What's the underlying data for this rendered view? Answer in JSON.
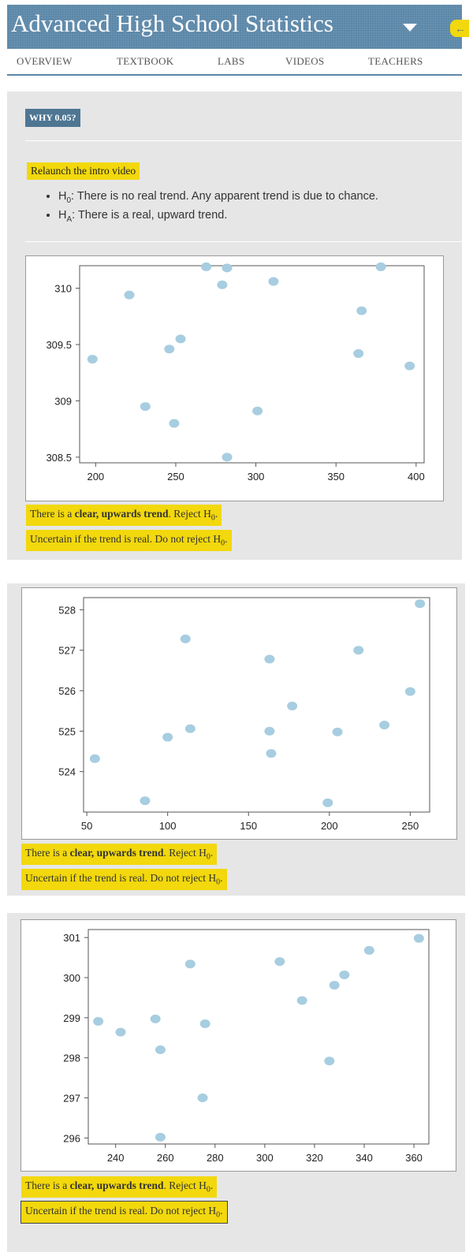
{
  "header": {
    "title": "Advanced High School Statistics",
    "back_icon": "←"
  },
  "nav": {
    "items": [
      "OVERVIEW",
      "TEXTBOOK",
      "LABS",
      "VIDEOS",
      "TEACHERS"
    ]
  },
  "intro": {
    "badge": "WHY 0.05?",
    "relaunch_label": "Relaunch the intro video",
    "h0_symbol": "H",
    "h0_sub": "0",
    "h0_text": ": There is no real trend. Any apparent trend is due to chance.",
    "ha_symbol": "H",
    "ha_sub": "A",
    "ha_text": ": There is a real, upward trend."
  },
  "answers": {
    "reject_pre": "There is a ",
    "reject_bold": "clear, upwards trend",
    "reject_post": ". Reject H",
    "reject_sub": "0",
    "reject_end": ".",
    "keep_text": "Uncertain if the trend is real. Do not reject H",
    "keep_sub": "0",
    "keep_end": "."
  },
  "colors": {
    "header_bg": "#5b87a8",
    "accent_yellow": "#f2d80c",
    "panel_bg": "#e6e6e6",
    "point_fill": "#a7cde0"
  },
  "chart_data": [
    {
      "type": "scatter",
      "title": "",
      "xlabel": "",
      "ylabel": "",
      "xlim": [
        190,
        405
      ],
      "ylim": [
        308.45,
        310.2
      ],
      "xticks": [
        200,
        250,
        300,
        350,
        400
      ],
      "yticks": [
        308.5,
        309.0,
        309.5,
        310.0
      ],
      "points": [
        {
          "x": 198,
          "y": 309.37
        },
        {
          "x": 221,
          "y": 309.94
        },
        {
          "x": 231,
          "y": 308.95
        },
        {
          "x": 246,
          "y": 309.46
        },
        {
          "x": 249,
          "y": 308.8
        },
        {
          "x": 253,
          "y": 309.55
        },
        {
          "x": 269,
          "y": 310.19
        },
        {
          "x": 279,
          "y": 310.03
        },
        {
          "x": 282,
          "y": 310.18
        },
        {
          "x": 282,
          "y": 308.5
        },
        {
          "x": 301,
          "y": 308.91
        },
        {
          "x": 311,
          "y": 310.06
        },
        {
          "x": 364,
          "y": 309.42
        },
        {
          "x": 366,
          "y": 309.8
        },
        {
          "x": 378,
          "y": 310.19
        },
        {
          "x": 396,
          "y": 309.31
        }
      ]
    },
    {
      "type": "scatter",
      "title": "",
      "xlabel": "",
      "ylabel": "",
      "xlim": [
        48,
        262
      ],
      "ylim": [
        523.0,
        528.3
      ],
      "xticks": [
        50,
        100,
        150,
        200,
        250
      ],
      "yticks": [
        524,
        525,
        526,
        527,
        528
      ],
      "points": [
        {
          "x": 55,
          "y": 524.32
        },
        {
          "x": 86,
          "y": 523.28
        },
        {
          "x": 100,
          "y": 524.85
        },
        {
          "x": 111,
          "y": 527.28
        },
        {
          "x": 114,
          "y": 525.06
        },
        {
          "x": 163,
          "y": 526.78
        },
        {
          "x": 163,
          "y": 525.0
        },
        {
          "x": 164,
          "y": 524.45
        },
        {
          "x": 177,
          "y": 525.62
        },
        {
          "x": 199,
          "y": 523.23
        },
        {
          "x": 205,
          "y": 524.98
        },
        {
          "x": 218,
          "y": 527.0
        },
        {
          "x": 234,
          "y": 525.15
        },
        {
          "x": 250,
          "y": 525.98
        },
        {
          "x": 256,
          "y": 528.15
        }
      ]
    },
    {
      "type": "scatter",
      "title": "",
      "xlabel": "",
      "ylabel": "",
      "xlim": [
        229,
        366
      ],
      "ylim": [
        295.85,
        301.2
      ],
      "xticks": [
        240,
        260,
        280,
        300,
        320,
        340,
        360
      ],
      "yticks": [
        296,
        297,
        298,
        299,
        300,
        301
      ],
      "points": [
        {
          "x": 233,
          "y": 298.91
        },
        {
          "x": 242,
          "y": 298.64
        },
        {
          "x": 256,
          "y": 298.97
        },
        {
          "x": 258,
          "y": 298.2
        },
        {
          "x": 258,
          "y": 296.02
        },
        {
          "x": 270,
          "y": 300.34
        },
        {
          "x": 275,
          "y": 297.0
        },
        {
          "x": 276,
          "y": 298.85
        },
        {
          "x": 306,
          "y": 300.4
        },
        {
          "x": 315,
          "y": 299.43
        },
        {
          "x": 326,
          "y": 297.92
        },
        {
          "x": 328,
          "y": 299.81
        },
        {
          "x": 332,
          "y": 300.07
        },
        {
          "x": 342,
          "y": 300.68
        },
        {
          "x": 362,
          "y": 300.98
        }
      ]
    }
  ]
}
